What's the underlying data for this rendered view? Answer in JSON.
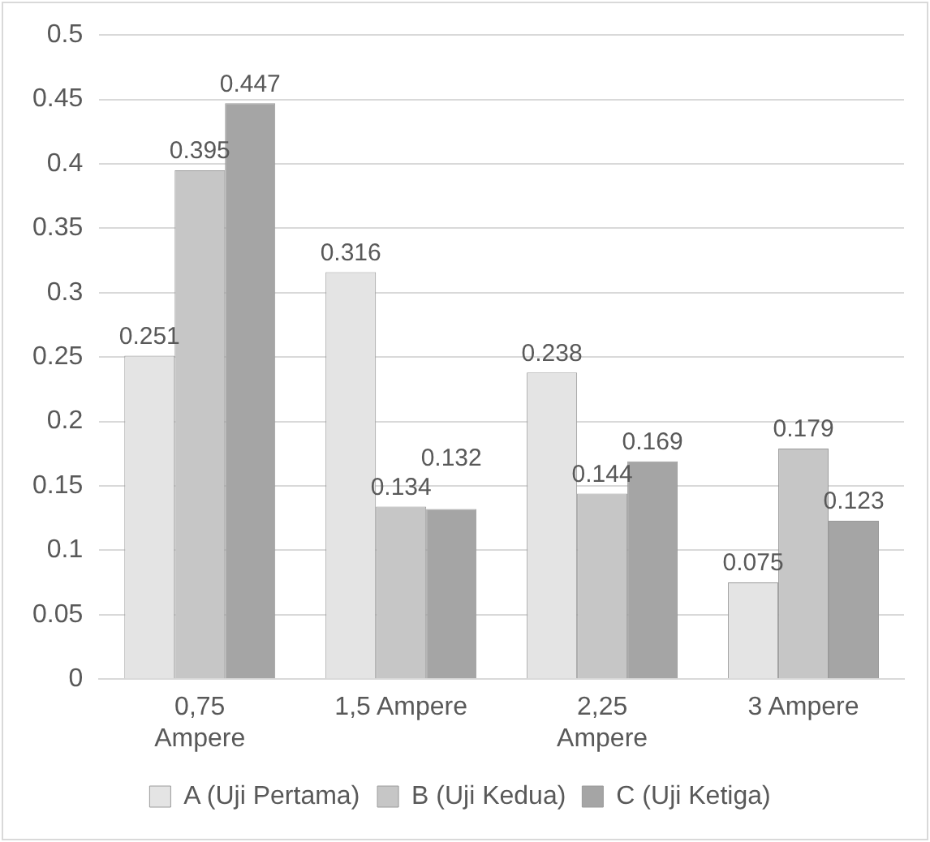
{
  "chart_data": {
    "type": "bar",
    "categories": [
      "0,75 Ampere",
      "1,5 Ampere",
      "2,25 Ampere",
      "3 Ampere"
    ],
    "series": [
      {
        "name": "A (Uji Pertama)",
        "color": "#e4e4e4",
        "values": [
          0.251,
          0.316,
          0.238,
          0.075
        ]
      },
      {
        "name": "B (Uji Kedua)",
        "color": "#c6c6c6",
        "values": [
          0.395,
          0.134,
          0.144,
          0.179
        ]
      },
      {
        "name": "C (Uji Ketiga)",
        "color": "#a5a5a5",
        "values": [
          0.447,
          0.132,
          0.169,
          0.123
        ]
      }
    ],
    "ylim": [
      0,
      0.5
    ],
    "yticks": [
      0,
      0.05,
      0.1,
      0.15,
      0.2,
      0.25,
      0.3,
      0.35,
      0.4,
      0.45,
      0.5
    ],
    "grid": "y",
    "legend": "bottom",
    "data_labels": true
  }
}
